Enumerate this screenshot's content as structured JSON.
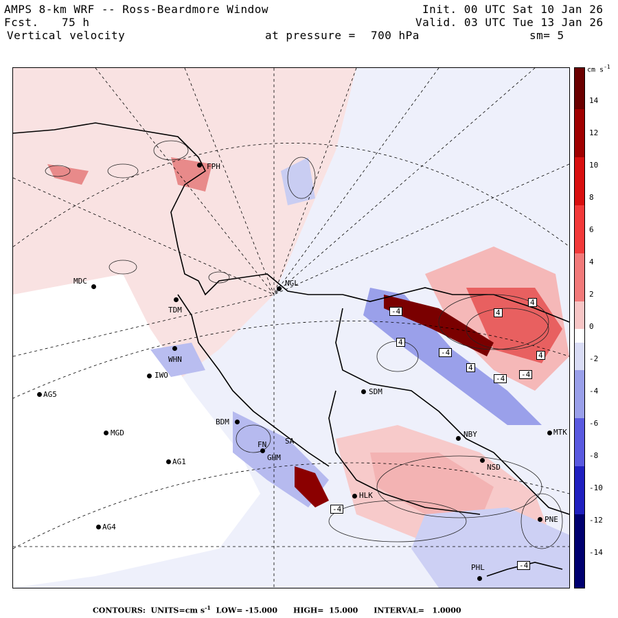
{
  "header": {
    "title_left": "AMPS 8-km WRF -- Ross-Beardmore Window",
    "forecast_label": "Fcst.",
    "forecast_value": "75 h",
    "field": "Vertical velocity",
    "pressure_label": "at pressure =",
    "pressure_value": "700 hPa",
    "init": "Init. 00 UTC Sat 10 Jan 26",
    "valid": "Valid. 03 UTC Tue 13 Jan 26",
    "smoothing": "sm= 5"
  },
  "stations": [
    {
      "name": "FPH"
    },
    {
      "name": "MDC"
    },
    {
      "name": "TDM"
    },
    {
      "name": "NGL"
    },
    {
      "name": "WHN"
    },
    {
      "name": "IWO"
    },
    {
      "name": "AG5"
    },
    {
      "name": "SDM"
    },
    {
      "name": "BDM"
    },
    {
      "name": "MGD"
    },
    {
      "name": "FN"
    },
    {
      "name": "SA"
    },
    {
      "name": "GHM"
    },
    {
      "name": "AG1"
    },
    {
      "name": "NBY"
    },
    {
      "name": "MTK"
    },
    {
      "name": "NSD"
    },
    {
      "name": "HLK"
    },
    {
      "name": "AG4"
    },
    {
      "name": "PNE"
    },
    {
      "name": "PHL"
    }
  ],
  "extrema_labels": [
    "4",
    "-4",
    "4",
    "4",
    "-4",
    "4",
    "-4",
    "-4",
    "4",
    "-4",
    "-4"
  ],
  "colorbar": {
    "units": "cm s",
    "units_exp": "-1",
    "ticks": [
      "14",
      "12",
      "10",
      "8",
      "6",
      "4",
      "2",
      "0",
      "-2",
      "-4",
      "-6",
      "-8",
      "-10",
      "-12",
      "-14"
    ],
    "colors": {
      "strong_up": "#6b0000",
      "up": "#e01010",
      "weak_up": "#f7c6c6",
      "zero": "#ffffff",
      "weak_down": "#d9dcf5",
      "down": "#3b3bd8",
      "strong_down": "#000070"
    }
  },
  "footer": {
    "text": "CONTOURS:  UNITS=cm s",
    "exp": "-1",
    "rest": "  LOW= -15.000      HIGH=  15.000      INTERVAL=   1.0000"
  }
}
